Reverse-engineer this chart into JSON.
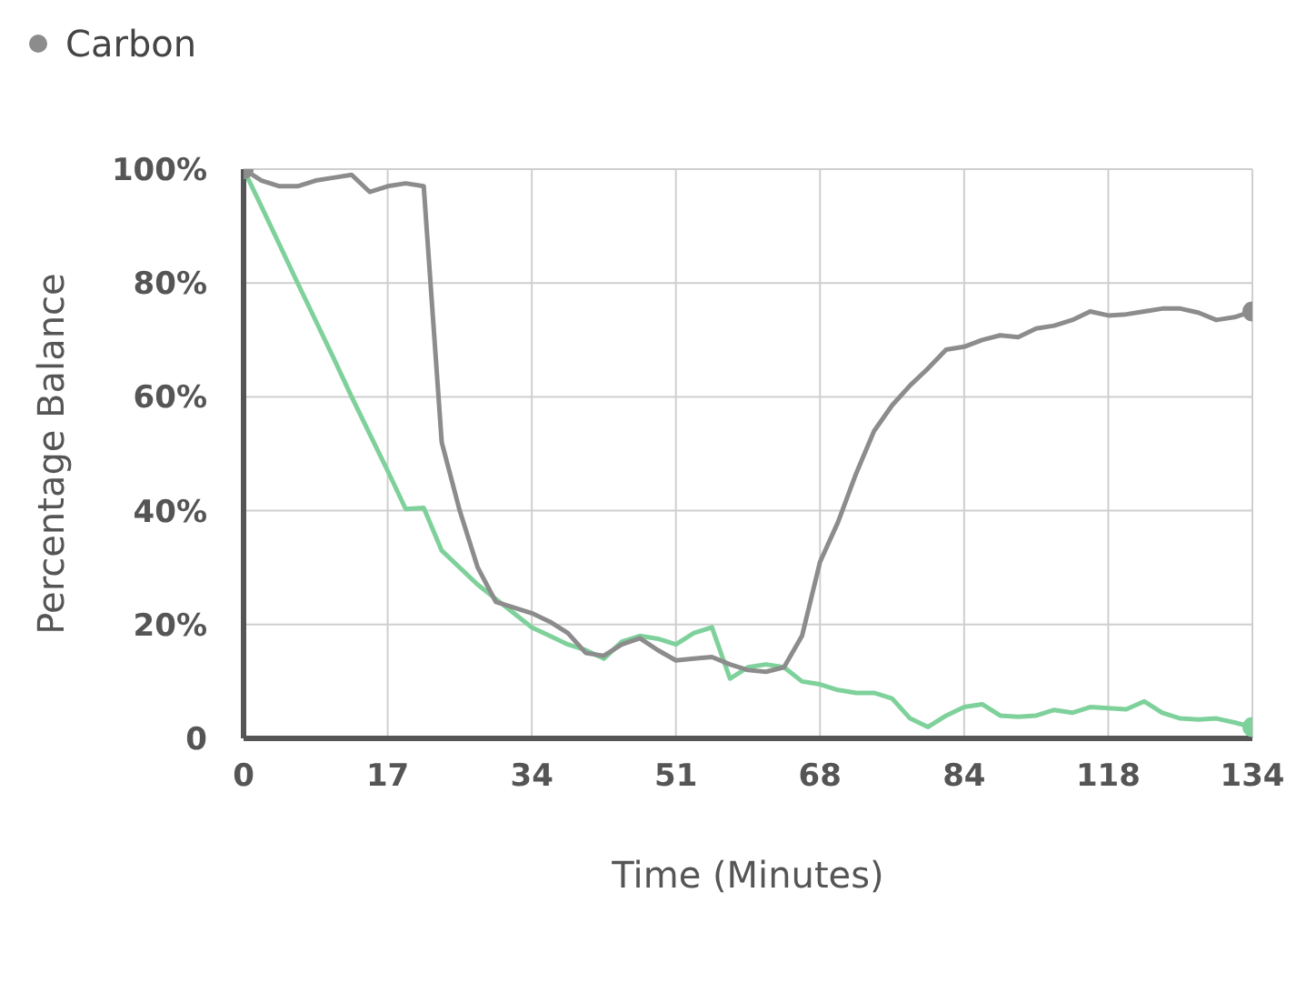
{
  "chart_data": {
    "type": "line",
    "xlabel": "Time (Minutes)",
    "ylabel": "Percentage Balance",
    "categories": [
      "0",
      null,
      null,
      null,
      null,
      null,
      null,
      null,
      "17",
      null,
      null,
      null,
      null,
      null,
      null,
      null,
      "34",
      null,
      null,
      null,
      null,
      null,
      null,
      null,
      "51",
      null,
      null,
      null,
      null,
      null,
      null,
      null,
      "68",
      null,
      null,
      null,
      null,
      null,
      null,
      null,
      "84",
      null,
      null,
      null,
      null,
      null,
      null,
      null,
      "118",
      null,
      null,
      null,
      null,
      null,
      null,
      null,
      "134"
    ],
    "series": [
      {
        "color": "#7fd19b",
        "values": [
          100,
          93.4,
          86.7,
          80,
          73.4,
          66.8,
          60,
          53.5,
          47,
          40.3,
          40.5,
          33,
          30,
          27,
          24.5,
          22,
          19.5,
          18,
          16.5,
          15.5,
          14,
          17,
          18,
          17.5,
          16.5,
          18.5,
          19.5,
          10.5,
          12.5,
          13,
          12.5,
          10,
          9.5,
          8.5,
          8,
          8,
          7,
          3.5,
          2,
          4,
          5.5,
          6,
          4,
          3.8,
          4,
          5,
          4.5,
          5.5,
          5.3,
          5.1,
          6.5,
          4.5,
          3.5,
          3.3,
          3.5,
          2.8,
          2
        ]
      },
      {
        "name": "Carbon",
        "color": "#8c8c8c",
        "values": [
          100,
          98,
          97,
          97,
          98,
          98.5,
          99,
          96,
          97,
          97.5,
          97,
          52,
          40,
          30,
          24,
          23,
          22,
          20.5,
          18.5,
          15,
          14.5,
          16.5,
          17.6,
          15.5,
          13.7,
          14,
          14.3,
          13,
          12,
          11.7,
          12.5,
          18,
          31,
          38,
          46.5,
          54,
          58.5,
          62,
          65,
          68.3,
          68.8,
          70,
          70.8,
          70.5,
          72,
          72.5,
          73.5,
          75,
          74.3,
          74.5,
          75,
          75.5,
          75.5,
          74.8,
          73.5,
          74,
          75
        ]
      }
    ],
    "ylim": [
      0,
      100
    ],
    "yticks": [
      0,
      {
        "value": 20,
        "label": "20%"
      },
      {
        "value": 40,
        "label": "40%"
      },
      {
        "value": 60,
        "label": "60%"
      },
      {
        "value": 80,
        "label": "80%"
      },
      {
        "value": 100,
        "label": "100%"
      }
    ],
    "grid": true,
    "legend": "top left"
  }
}
